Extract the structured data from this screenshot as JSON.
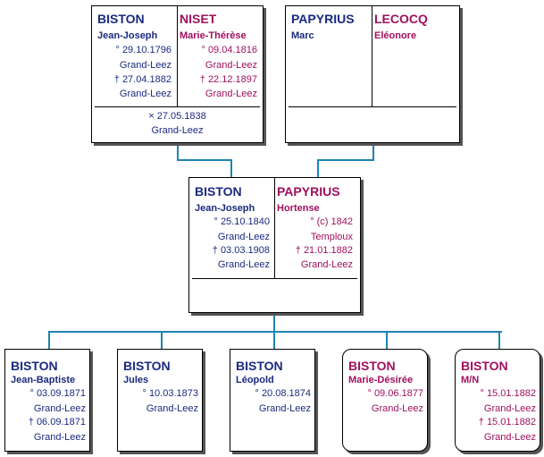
{
  "gp_left": {
    "husband": {
      "surname": "BISTON",
      "given": "Jean-Joseph",
      "birth": "° 29.10.1796",
      "birth_place": "Grand-Leez",
      "death": "† 27.04.1882",
      "death_place": "Grand-Leez"
    },
    "wife": {
      "surname": "NISET",
      "given": "Marie-Thérèse",
      "birth": "° 09.04.1816",
      "birth_place": "Grand-Leez",
      "death": "† 22.12.1897",
      "death_place": "Grand-Leez"
    },
    "marriage": "× 27.05.1838",
    "marriage_place": "Grand-Leez"
  },
  "gp_right": {
    "husband": {
      "surname": "PAPYRIUS",
      "given": "Marc"
    },
    "wife": {
      "surname": "LECOCQ",
      "given": "Eléonore"
    }
  },
  "parents": {
    "husband": {
      "surname": "BISTON",
      "given": "Jean-Joseph",
      "birth": "° 25.10.1840",
      "birth_place": "Grand-Leez",
      "death": "† 03.03.1908",
      "death_place": "Grand-Leez"
    },
    "wife": {
      "surname": "PAPYRIUS",
      "given": "Hortense",
      "birth": "° (c) 1842",
      "birth_place": "Temploux",
      "death": "† 21.01.1882",
      "death_place": "Grand-Leez"
    }
  },
  "children": [
    {
      "surname": "BISTON",
      "given": "Jean-Baptiste",
      "birth": "° 03.09.1871",
      "birth_place": "Grand-Leez",
      "death": "† 06.09.1871",
      "death_place": "Grand-Leez",
      "sex": "m"
    },
    {
      "surname": "BISTON",
      "given": "Jules",
      "birth": "° 10.03.1873",
      "birth_place": "Grand-Leez",
      "sex": "m"
    },
    {
      "surname": "BISTON",
      "given": "Léopold",
      "birth": "° 20.08.1874",
      "birth_place": "Grand-Leez",
      "sex": "m"
    },
    {
      "surname": "BISTON",
      "given": "Marie-Désirée",
      "birth": "° 09.06.1877",
      "birth_place": "Grand-Leez",
      "sex": "f"
    },
    {
      "surname": "BISTON",
      "given": "M/N",
      "birth": "° 15.01.1882",
      "birth_place": "Grand-Leez",
      "death": "† 15.01.1882",
      "death_place": "Grand-Leez",
      "sex": "f"
    }
  ],
  "colors": {
    "male": "#1a2a80",
    "female": "#a0105e",
    "connector": "#1e84b4"
  }
}
